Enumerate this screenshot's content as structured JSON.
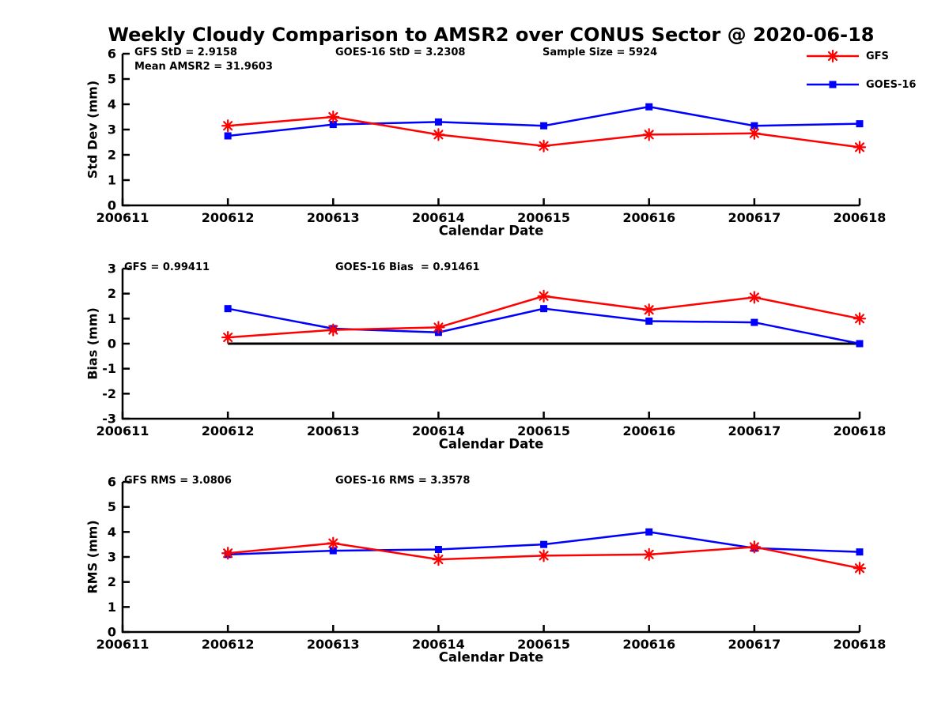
{
  "title": "Weekly Cloudy Comparison to AMSR2 over CONUS Sector @ 2020-06-18",
  "colors": {
    "gfs": "#ff0000",
    "goes16": "#0000ff",
    "axis": "#000000",
    "background": "#ffffff"
  },
  "legend": {
    "position": "top-right",
    "items": [
      {
        "label": "GFS",
        "marker": "asterisk",
        "color": "#ff0000"
      },
      {
        "label": "GOES-16",
        "marker": "square",
        "color": "#0000ff"
      }
    ]
  },
  "chart_data": [
    {
      "type": "line",
      "name": "std-dev",
      "ylabel": "Std Dev (mm)",
      "xlabel": "Calendar Date",
      "ylim": [
        0,
        6
      ],
      "yticks": [
        0,
        1,
        2,
        3,
        4,
        5,
        6
      ],
      "grid": false,
      "categories": [
        "200611",
        "200612",
        "200613",
        "200614",
        "200615",
        "200616",
        "200617",
        "200618"
      ],
      "zero_line": false,
      "annotations": [
        {
          "text": "GFS StD = 2.9158",
          "x_offset": 15,
          "row": 0
        },
        {
          "text": "Mean AMSR2 = 31.9603",
          "x_offset": 15,
          "row": 1
        },
        {
          "text": "GOES-16 StD = 3.2308",
          "x_offset": 269,
          "row": 0
        },
        {
          "text": "Sample Size = 5924",
          "x_offset": 531,
          "row": 0
        }
      ],
      "series": [
        {
          "name": "GFS",
          "color": "#ff0000",
          "marker": "asterisk",
          "values": [
            null,
            3.15,
            3.5,
            2.8,
            2.35,
            2.8,
            2.85,
            2.3
          ]
        },
        {
          "name": "GOES-16",
          "color": "#0000ff",
          "marker": "square",
          "values": [
            null,
            2.75,
            3.2,
            3.3,
            3.15,
            3.9,
            3.15,
            3.23
          ]
        }
      ]
    },
    {
      "type": "line",
      "name": "bias",
      "ylabel": "Bias (mm)",
      "xlabel": "Calendar Date",
      "ylim": [
        -3,
        3
      ],
      "yticks": [
        -3,
        -2,
        -1,
        0,
        1,
        2,
        3
      ],
      "grid": false,
      "categories": [
        "200611",
        "200612",
        "200613",
        "200614",
        "200615",
        "200616",
        "200617",
        "200618"
      ],
      "zero_line": true,
      "annotations": [
        {
          "text": "GFS = 0.99411",
          "x_offset": 2,
          "row": 0
        },
        {
          "text": "GOES-16 Bias  = 0.91461",
          "x_offset": 269,
          "row": 0
        }
      ],
      "series": [
        {
          "name": "GFS",
          "color": "#ff0000",
          "marker": "asterisk",
          "values": [
            null,
            0.25,
            0.55,
            0.65,
            1.9,
            1.35,
            1.85,
            1.0
          ]
        },
        {
          "name": "GOES-16",
          "color": "#0000ff",
          "marker": "square",
          "values": [
            null,
            1.4,
            0.6,
            0.45,
            1.4,
            0.9,
            0.85,
            0.0
          ]
        }
      ]
    },
    {
      "type": "line",
      "name": "rms",
      "ylabel": "RMS (mm)",
      "xlabel": "Calendar Date",
      "ylim": [
        0,
        6
      ],
      "yticks": [
        0,
        1,
        2,
        3,
        4,
        5,
        6
      ],
      "grid": false,
      "categories": [
        "200611",
        "200612",
        "200613",
        "200614",
        "200615",
        "200616",
        "200617",
        "200618"
      ],
      "zero_line": false,
      "annotations": [
        {
          "text": "GFS RMS = 3.0806",
          "x_offset": 2,
          "row": 0
        },
        {
          "text": "GOES-16 RMS = 3.3578",
          "x_offset": 269,
          "row": 0
        }
      ],
      "series": [
        {
          "name": "GFS",
          "color": "#ff0000",
          "marker": "asterisk",
          "values": [
            null,
            3.15,
            3.55,
            2.9,
            3.05,
            3.1,
            3.4,
            2.55
          ]
        },
        {
          "name": "GOES-16",
          "color": "#0000ff",
          "marker": "square",
          "values": [
            null,
            3.1,
            3.25,
            3.3,
            3.5,
            4.0,
            3.35,
            3.2
          ]
        }
      ]
    }
  ]
}
